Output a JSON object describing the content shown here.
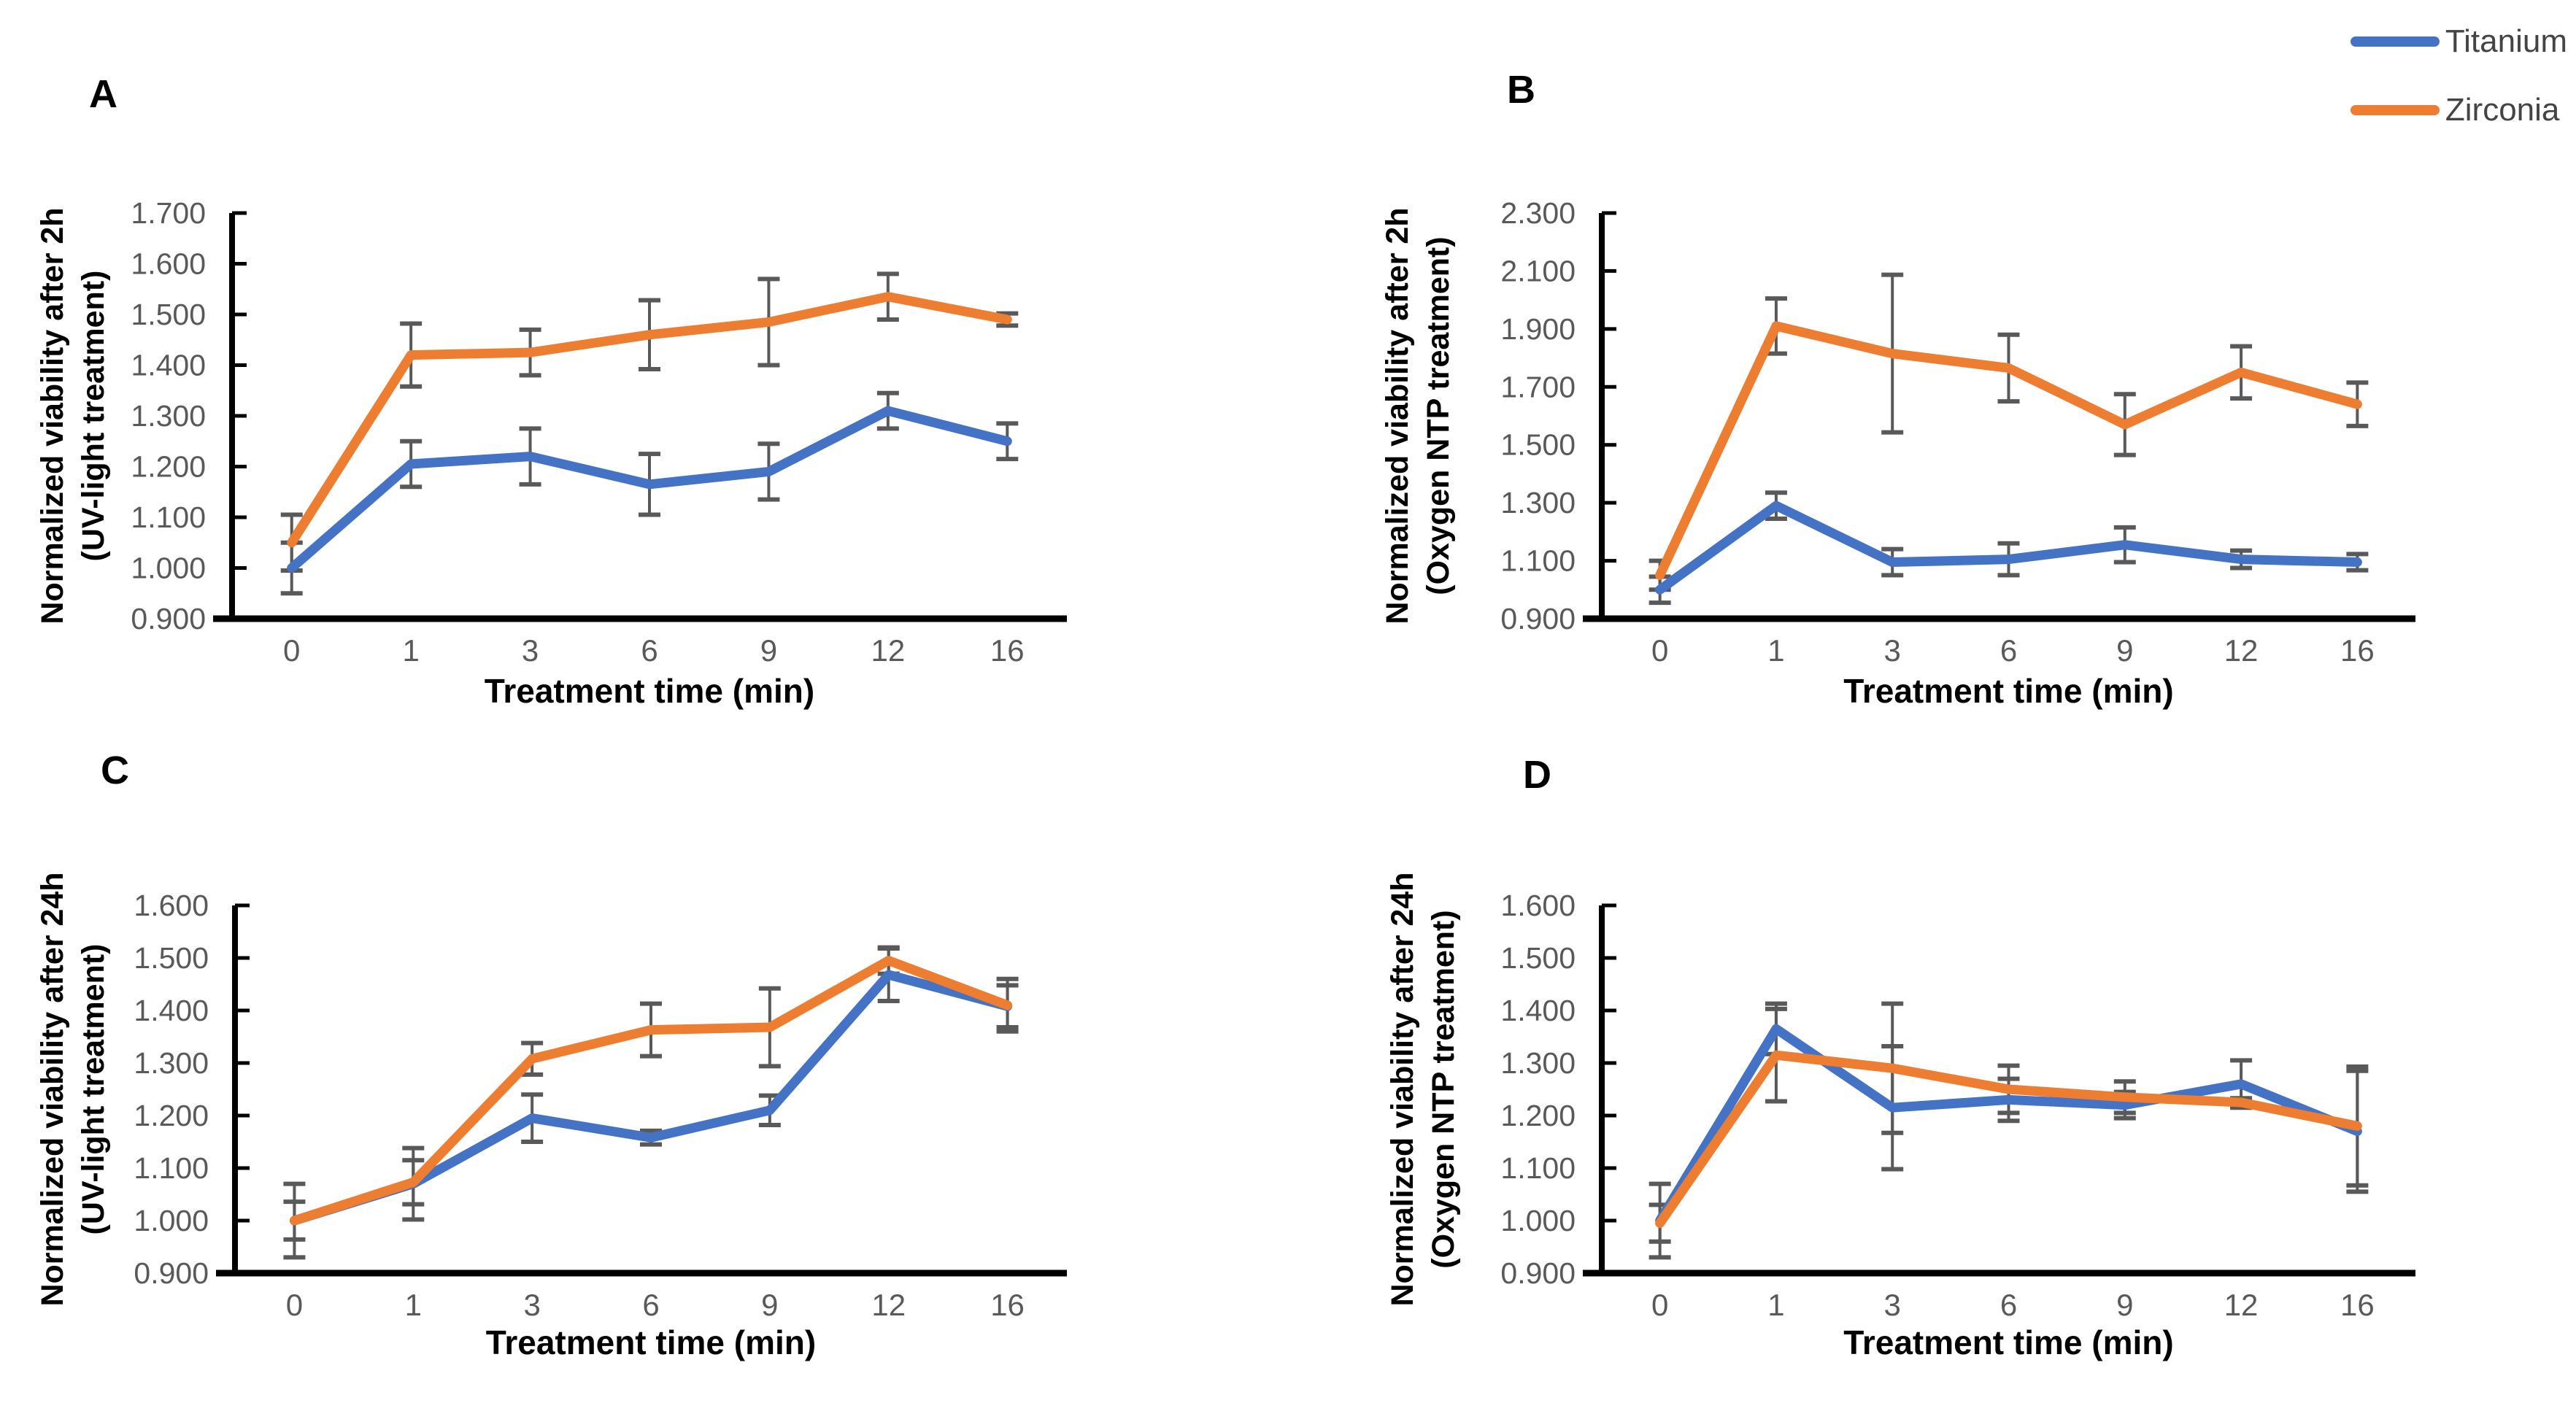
{
  "figure": {
    "background": "#ffffff",
    "colors": {
      "titanium": "#4472C4",
      "zirconia": "#ED7D31",
      "error_bar": "#595959",
      "tick_label": "#595959",
      "axis": "#000000"
    },
    "legend": {
      "position": "top-right",
      "items": [
        {
          "label": "Titanium",
          "color": "#4472C4"
        },
        {
          "label": "Zirconia",
          "color": "#ED7D31"
        }
      ]
    }
  },
  "chart_data": [
    {
      "panel": "A",
      "type": "line",
      "ylabel_line1": "Normalized viability after 2h",
      "ylabel_line2": "(UV-light treatment)",
      "xlabel": "Treatment time (min)",
      "categories": [
        "0",
        "1",
        "3",
        "6",
        "9",
        "12",
        "16"
      ],
      "ylim": [
        0.9,
        1.7
      ],
      "ytick_step": 0.1,
      "grid": false,
      "series": [
        {
          "name": "Titanium",
          "color": "#4472C4",
          "values": [
            1.0,
            1.205,
            1.22,
            1.165,
            1.19,
            1.31,
            1.25
          ],
          "errors": [
            0.05,
            0.045,
            0.055,
            0.06,
            0.055,
            0.035,
            0.035
          ]
        },
        {
          "name": "Zirconia",
          "color": "#ED7D31",
          "values": [
            1.05,
            1.42,
            1.425,
            1.46,
            1.485,
            1.535,
            1.49
          ],
          "errors": [
            0.055,
            0.062,
            0.045,
            0.068,
            0.085,
            0.045,
            0.012
          ]
        }
      ]
    },
    {
      "panel": "B",
      "type": "line",
      "ylabel_line1": "Normalized viability after 2h",
      "ylabel_line2": "(Oxygen NTP treatment)",
      "xlabel": "Treatment time (min)",
      "categories": [
        "0",
        "1",
        "3",
        "6",
        "9",
        "12",
        "16"
      ],
      "ylim": [
        0.9,
        2.3
      ],
      "ytick_step": 0.2,
      "grid": false,
      "series": [
        {
          "name": "Titanium",
          "color": "#4472C4",
          "values": [
            1.0,
            1.29,
            1.095,
            1.105,
            1.155,
            1.105,
            1.095
          ],
          "errors": [
            0.045,
            0.045,
            0.045,
            0.055,
            0.06,
            0.03,
            0.028
          ]
        },
        {
          "name": "Zirconia",
          "color": "#ED7D31",
          "values": [
            1.05,
            1.91,
            1.815,
            1.765,
            1.57,
            1.75,
            1.64
          ],
          "errors": [
            0.05,
            0.095,
            0.272,
            0.115,
            0.105,
            0.09,
            0.075
          ]
        }
      ]
    },
    {
      "panel": "C",
      "type": "line",
      "ylabel_line1": "Normalized viability after 24h",
      "ylabel_line2": "(UV-light treatment)",
      "xlabel": "Treatment time (min)",
      "categories": [
        "0",
        "1",
        "3",
        "6",
        "9",
        "12",
        "16"
      ],
      "ylim": [
        0.9,
        1.6
      ],
      "ytick_step": 0.1,
      "grid": false,
      "series": [
        {
          "name": "Titanium",
          "color": "#4472C4",
          "values": [
            1.0,
            1.07,
            1.195,
            1.158,
            1.21,
            1.468,
            1.408
          ],
          "errors": [
            0.07,
            0.068,
            0.045,
            0.013,
            0.028,
            0.05,
            0.04
          ]
        },
        {
          "name": "Zirconia",
          "color": "#ED7D31",
          "values": [
            1.0,
            1.073,
            1.308,
            1.363,
            1.368,
            1.495,
            1.41
          ],
          "errors": [
            0.036,
            0.042,
            0.03,
            0.05,
            0.074,
            0.025,
            0.05
          ]
        }
      ]
    },
    {
      "panel": "D",
      "type": "line",
      "ylabel_line1": "Normalized viability after 24h",
      "ylabel_line2": "(Oxygen NTP treatment)",
      "xlabel": "Treatment time (min)",
      "categories": [
        "0",
        "1",
        "3",
        "6",
        "9",
        "12",
        "16"
      ],
      "ylim": [
        0.9,
        1.6
      ],
      "ytick_step": 0.1,
      "grid": false,
      "series": [
        {
          "name": "Titanium",
          "color": "#4472C4",
          "values": [
            1.0,
            1.365,
            1.215,
            1.23,
            1.22,
            1.26,
            1.17
          ],
          "errors": [
            0.07,
            0.048,
            0.117,
            0.04,
            0.025,
            0.045,
            0.115
          ]
        },
        {
          "name": "Zirconia",
          "color": "#ED7D31",
          "values": [
            0.995,
            1.315,
            1.29,
            1.25,
            1.235,
            1.225,
            1.18
          ],
          "errors": [
            0.035,
            0.088,
            0.123,
            0.045,
            0.03,
            0.008,
            0.113
          ]
        }
      ]
    }
  ]
}
